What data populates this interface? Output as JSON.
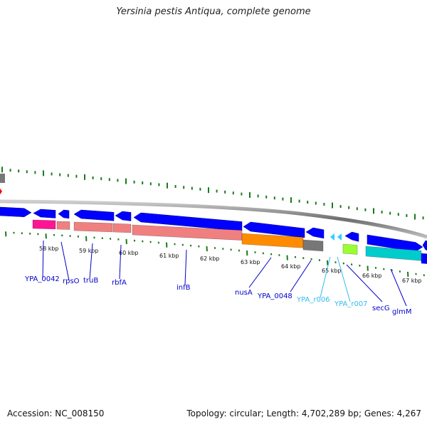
{
  "title": "Yersinia pestis Antiqua, complete genome",
  "footer": {
    "accession": "Accession: NC_008150",
    "summary": "Topology: circular; Length: 4,702,289 bp; Genes: 4,267"
  },
  "colors": {
    "cds": "#0000ff",
    "rrna_light": "#f08080",
    "trna": "#33ccff",
    "gray": "#777777",
    "magenta": "#ff1493",
    "orange": "#ff8c00",
    "lime": "#99ff33",
    "cyan": "#00cccc",
    "tick": "#1a7a1a"
  },
  "scale": {
    "labels": [
      "58 kbp",
      "59 kbp",
      "60 kbp",
      "61 kbp",
      "62 kbp",
      "63 kbp",
      "64 kbp",
      "65 kbp",
      "66 kbp",
      "67 kbp"
    ]
  },
  "genes": [
    {
      "label": "YPA_0042",
      "color": "#0000cc"
    },
    {
      "label": "rpsO",
      "color": "#0000cc"
    },
    {
      "label": "truB",
      "color": "#0000cc"
    },
    {
      "label": "rbfA",
      "color": "#0000cc"
    },
    {
      "label": "infB",
      "color": "#0000cc"
    },
    {
      "label": "nusA",
      "color": "#0000cc"
    },
    {
      "label": "YPA_0048",
      "color": "#0000cc"
    },
    {
      "label": "YPA_r006",
      "color": "#33bbee"
    },
    {
      "label": "YPA_r007",
      "color": "#33bbee"
    },
    {
      "label": "secG",
      "color": "#0000cc"
    },
    {
      "label": "glmM",
      "color": "#0000cc"
    }
  ]
}
